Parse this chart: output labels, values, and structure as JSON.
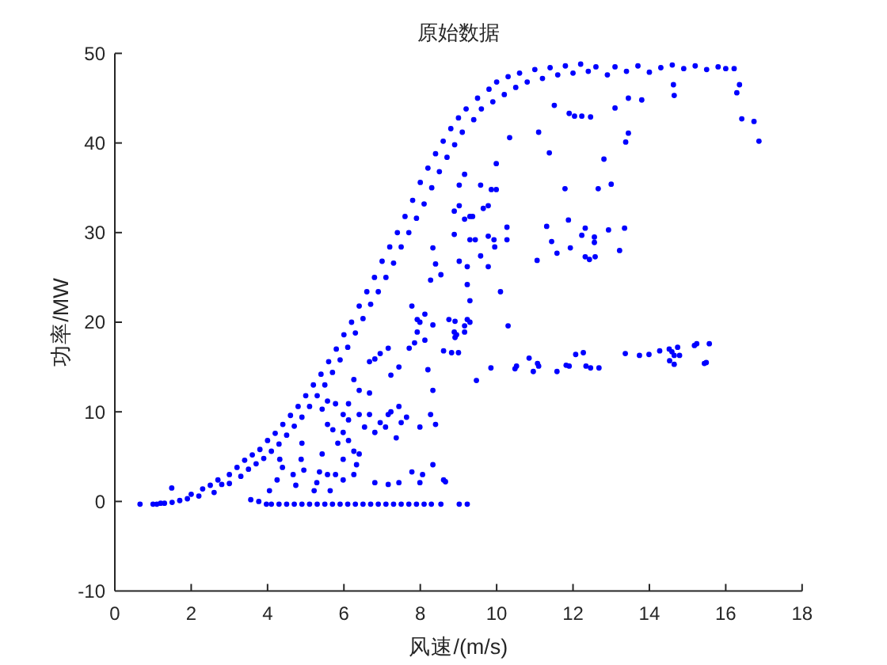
{
  "chart_data": {
    "type": "scatter",
    "title": "原始数据",
    "xlabel": "风速/(m/s)",
    "ylabel": "功率/MW",
    "xlim": [
      0,
      18
    ],
    "ylim": [
      -10,
      50
    ],
    "xticks": [
      0,
      2,
      4,
      6,
      8,
      10,
      12,
      14,
      16,
      18
    ],
    "yticks": [
      -10,
      0,
      10,
      20,
      30,
      40,
      50
    ],
    "marker": "circle",
    "series": [
      {
        "color": "#0000ff",
        "x": [
          0.66,
          1.0,
          1.1,
          1.2,
          1.3,
          1.5,
          1.49,
          1.7,
          1.9,
          2.0,
          2.2,
          2.3,
          2.5,
          2.6,
          2.7,
          2.8,
          3.0,
          3.0,
          3.2,
          3.3,
          3.4,
          3.5,
          3.6,
          3.7,
          3.8,
          3.9,
          4.0,
          4.1,
          4.2,
          4.3,
          4.4,
          4.5,
          4.6,
          4.7,
          4.8,
          4.9,
          5.0,
          5.1,
          5.2,
          5.3,
          5.4,
          5.5,
          5.6,
          5.7,
          5.8,
          5.9,
          6.0,
          6.1,
          6.2,
          6.3,
          6.4,
          6.5,
          6.6,
          6.7,
          6.8,
          6.9,
          7.0,
          7.1,
          7.2,
          7.3,
          7.4,
          7.5,
          7.6,
          7.7,
          7.8,
          7.9,
          8.0,
          8.1,
          8.2,
          8.3,
          8.4,
          8.5,
          8.6,
          8.7,
          8.8,
          8.9,
          9.0,
          9.1,
          9.2,
          9.4,
          9.5,
          9.6,
          9.8,
          9.9,
          10.0,
          10.2,
          10.3,
          10.5,
          10.6,
          10.8,
          11.0,
          11.2,
          11.4,
          11.6,
          11.8,
          12.0,
          12.2,
          12.4,
          12.6,
          12.9,
          13.1,
          13.4,
          13.7,
          14.0,
          14.3,
          14.6,
          14.9,
          15.2,
          15.5,
          15.8,
          16.0,
          16.22,
          16.36,
          16.29,
          16.42,
          16.74,
          16.87,
          14.63,
          14.65,
          13.8,
          13.1,
          13.45,
          11.9,
          12.04,
          12.23,
          12.46,
          11.51,
          11.1,
          10.34,
          13.38,
          13.45,
          11.38,
          12.81,
          11.79,
          12.66,
          13.0,
          11.31,
          11.88,
          11.44,
          11.58,
          11.93,
          12.23,
          12.32,
          12.56,
          12.56,
          12.43,
          12.32,
          12.58,
          12.93,
          13.35,
          13.22,
          11.06,
          10.1,
          9.99,
          9.99,
          9.58,
          9.86,
          9.78,
          9.65,
          9.3,
          9.16,
          8.89,
          9.3,
          9.44,
          9.93,
          9.95,
          9.78,
          10.27,
          10.27,
          9.02,
          9.23,
          9.78,
          9.58,
          9.23,
          9.3,
          10.3,
          9.47,
          9.85,
          10.48,
          10.52,
          10.85,
          10.96,
          11.07,
          11.1,
          11.58,
          11.82,
          11.9,
          12.07,
          12.27,
          12.34,
          12.46,
          12.68,
          13.37,
          13.74,
          13.99,
          14.27,
          14.52,
          14.59,
          14.65,
          14.74,
          14.79,
          14.53,
          14.65,
          15.18,
          15.24,
          15.57,
          15.44,
          15.49,
          8.91,
          9.16,
          9.16,
          8.91,
          8.82,
          9.0,
          8.61,
          9.23,
          8.95,
          9.37,
          9.16,
          9.02,
          8.89,
          9.02,
          8.33,
          8.4,
          8.27,
          8.54,
          7.78,
          7.92,
          8.12,
          8.75,
          4.32,
          4.39,
          4.25,
          4.05,
          4.74,
          4.67,
          4.95,
          4.9,
          4.88,
          5.29,
          5.57,
          5.64,
          5.22,
          5.36,
          5.98,
          5.78,
          5.98,
          6.26,
          6.33,
          6.4,
          6.26,
          5.84,
          6.12,
          5.71,
          5.98,
          5.57,
          5.43,
          5.43,
          5.57,
          5.78,
          5.98,
          6.12,
          6.4,
          6.67,
          6.54,
          6.81,
          6.95,
          7.16,
          7.09,
          7.23,
          7.44,
          7.64,
          7.5,
          7.37,
          6.26,
          6.4,
          6.67,
          6.12,
          6.95,
          7.16,
          6.67,
          6.81,
          7.23,
          7.44,
          7.71,
          7.85,
          8.12,
          8.2,
          8.33,
          8.27,
          7.99,
          8.4,
          8.33,
          8.06,
          7.99,
          8.61,
          7.78,
          7.44,
          7.16,
          6.81,
          7.92,
          7.99,
          8.89,
          9.3,
          8.33,
          8.66,
          3.56,
          3.77,
          3.97,
          4.1,
          4.3,
          4.5,
          4.7,
          4.9,
          5.1,
          5.3,
          5.5,
          5.7,
          5.9,
          6.1,
          6.3,
          6.5,
          6.7,
          6.9,
          7.1,
          7.3,
          7.5,
          7.7,
          7.9,
          8.1,
          8.29,
          8.54,
          9.02,
          9.23
        ],
        "values": [
          -0.3,
          -0.3,
          -0.3,
          -0.2,
          -0.2,
          -0.1,
          1.5,
          0.1,
          0.3,
          0.8,
          0.6,
          1.4,
          1.8,
          1.0,
          2.4,
          1.9,
          3.0,
          2.0,
          3.8,
          2.8,
          4.6,
          3.6,
          5.2,
          4.2,
          5.8,
          4.8,
          6.8,
          5.6,
          7.6,
          6.4,
          8.6,
          7.4,
          9.6,
          8.4,
          10.6,
          9.4,
          11.8,
          10.6,
          13.0,
          11.8,
          14.2,
          13.0,
          15.6,
          14.4,
          17.0,
          15.8,
          18.6,
          17.2,
          20.0,
          18.8,
          21.8,
          20.4,
          23.4,
          22.0,
          25.0,
          23.4,
          26.8,
          25.0,
          28.4,
          26.6,
          30.0,
          28.4,
          31.8,
          30.0,
          33.6,
          31.6,
          35.6,
          33.2,
          37.2,
          35.0,
          38.8,
          36.8,
          40.2,
          38.4,
          41.6,
          39.8,
          42.8,
          41.2,
          43.8,
          42.6,
          45.0,
          43.8,
          46.0,
          44.6,
          46.8,
          45.4,
          47.4,
          46.2,
          47.8,
          46.8,
          48.2,
          47.2,
          48.4,
          47.6,
          48.6,
          47.8,
          48.8,
          48.0,
          48.5,
          47.6,
          48.5,
          48.0,
          48.6,
          47.9,
          48.4,
          48.7,
          48.3,
          48.6,
          48.2,
          48.5,
          48.3,
          48.3,
          46.5,
          45.6,
          42.7,
          42.4,
          40.2,
          46.5,
          45.3,
          44.8,
          43.9,
          45.0,
          43.3,
          43.0,
          43.0,
          42.9,
          44.2,
          41.2,
          40.6,
          40.1,
          41.1,
          38.9,
          38.2,
          34.9,
          34.9,
          35.4,
          30.7,
          31.4,
          29.0,
          27.7,
          28.3,
          29.7,
          30.5,
          29.5,
          28.9,
          27.0,
          27.3,
          27.3,
          30.3,
          30.5,
          28.0,
          26.9,
          23.4,
          37.7,
          34.8,
          35.3,
          34.8,
          33.0,
          32.7,
          31.8,
          31.5,
          29.8,
          29.2,
          29.2,
          29.2,
          28.4,
          29.6,
          30.6,
          29.2,
          26.8,
          26.2,
          26.2,
          27.4,
          24.2,
          22.4,
          19.6,
          13.5,
          14.9,
          14.8,
          15.1,
          16.0,
          14.5,
          15.4,
          15.1,
          14.5,
          15.2,
          15.1,
          16.4,
          16.6,
          15.1,
          14.9,
          14.9,
          16.5,
          16.3,
          16.4,
          16.8,
          17.0,
          16.7,
          16.3,
          17.2,
          16.3,
          15.7,
          15.3,
          17.4,
          17.6,
          17.6,
          15.4,
          15.5,
          20.1,
          19.6,
          18.9,
          18.3,
          16.6,
          16.6,
          16.8,
          20.3,
          18.6,
          31.8,
          36.5,
          33.0,
          32.4,
          35.3,
          28.3,
          26.5,
          24.7,
          25.3,
          21.8,
          20.3,
          20.9,
          20.3,
          4.7,
          3.8,
          2.4,
          1.2,
          1.8,
          3.0,
          3.5,
          6.5,
          4.7,
          2.1,
          3.0,
          1.2,
          1.2,
          3.3,
          2.4,
          3.0,
          4.7,
          3.0,
          4.1,
          5.3,
          5.6,
          6.5,
          6.8,
          8.0,
          7.7,
          8.6,
          5.3,
          10.3,
          11.2,
          10.9,
          9.7,
          9.1,
          9.7,
          9.7,
          8.3,
          7.7,
          8.8,
          9.7,
          8.3,
          10.0,
          10.6,
          9.4,
          8.8,
          7.1,
          13.6,
          12.4,
          12.1,
          10.9,
          16.5,
          17.1,
          15.6,
          15.9,
          14.1,
          15.0,
          17.1,
          17.7,
          18.0,
          14.7,
          12.4,
          9.7,
          8.3,
          8.6,
          4.1,
          3.0,
          2.1,
          2.4,
          3.3,
          2.1,
          1.9,
          2.1,
          18.9,
          20.0,
          18.9,
          20.0,
          19.7,
          2.2,
          0.2,
          0.0,
          -0.3,
          -0.3,
          -0.3,
          -0.3,
          -0.3,
          -0.3,
          -0.3,
          -0.3,
          -0.3,
          -0.3,
          -0.3,
          -0.3,
          -0.3,
          -0.3,
          -0.3,
          -0.3,
          -0.3,
          -0.3,
          -0.3,
          -0.3,
          -0.3,
          -0.3,
          -0.3,
          -0.3,
          -0.3,
          -0.3
        ]
      }
    ]
  }
}
